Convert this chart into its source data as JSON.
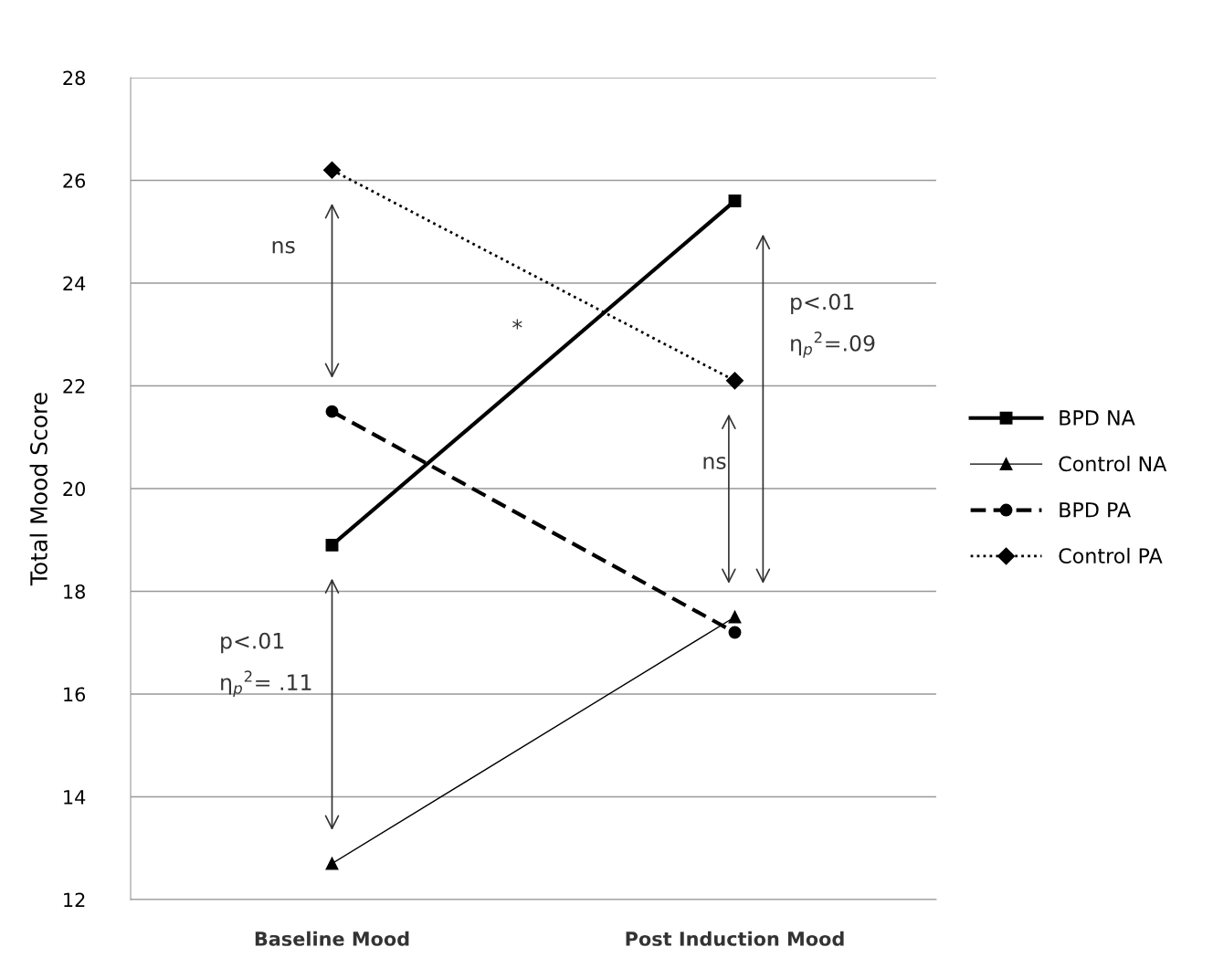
{
  "chart_data": {
    "type": "line",
    "ylabel": "Total Mood Score",
    "categories": [
      "Baseline Mood",
      "Post Induction Mood"
    ],
    "series": [
      {
        "name": "BPD NA",
        "color": "#000000",
        "values": [
          18.9,
          25.6
        ],
        "marker": "square",
        "line_style": "solid"
      },
      {
        "name": "Control NA",
        "color": "#000000",
        "values": [
          12.7,
          17.5
        ],
        "marker": "triangle",
        "line_style": "solid"
      },
      {
        "name": "BPD PA",
        "color": "#000000",
        "values": [
          21.5,
          17.2
        ],
        "marker": "circle",
        "line_style": "dashed"
      },
      {
        "name": "Control PA",
        "color": "#000000",
        "values": [
          26.2,
          22.1
        ],
        "marker": "diamond",
        "line_style": "dotted"
      }
    ],
    "ylim": [
      12,
      28
    ],
    "yticks": [
      12,
      14,
      16,
      18,
      20,
      22,
      24,
      26,
      28
    ],
    "grid": "y",
    "legend": "right",
    "annotations": [
      "ns",
      "*",
      "p<.01",
      "η$_{p}$$^{2}$=.09",
      "ns",
      "p<.01",
      "η$_{p}$$^{2}$= .11"
    ]
  }
}
